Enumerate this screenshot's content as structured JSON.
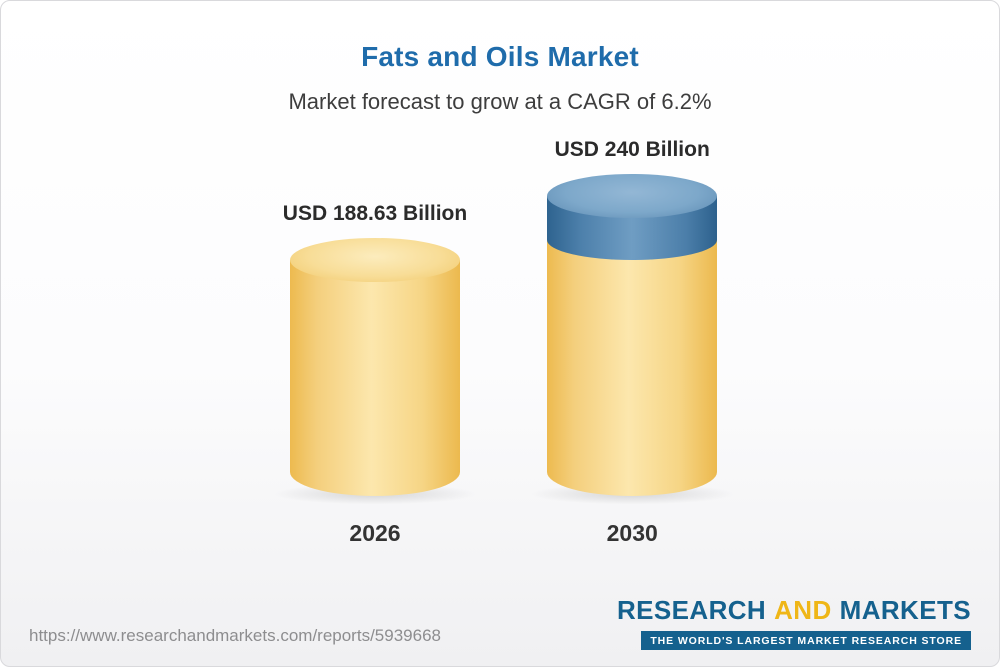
{
  "page": {
    "title": "Fats and Oils Market",
    "subtitle": "Market forecast to grow at a CAGR of 6.2%"
  },
  "chart_data": {
    "type": "bar",
    "title": "Fats and Oils Market",
    "subtitle": "Market forecast to grow at a CAGR of 6.2%",
    "cagr_percent": 6.2,
    "unit": "USD Billion",
    "categories": [
      "2026",
      "2030"
    ],
    "values": [
      188.63,
      240
    ],
    "value_labels": [
      "USD 188.63 Billion",
      "USD 240 Billion"
    ],
    "ylim": [
      0,
      240
    ],
    "legend": "none",
    "grid": false,
    "colors": {
      "base_segment": "#f5ce79",
      "growth_segment": "#4d80ab",
      "title_text": "#1f6cab"
    },
    "notes_visible_structure": "2030 cylinder shows portion above the 2026 level as a blue top segment"
  },
  "footer": {
    "url": "https://www.researchandmarkets.com/reports/5939668",
    "logo": {
      "word_research": "RESEARCH",
      "word_and": "AND",
      "word_markets": "MARKETS",
      "tagline": "THE WORLD'S LARGEST MARKET RESEARCH STORE"
    }
  }
}
